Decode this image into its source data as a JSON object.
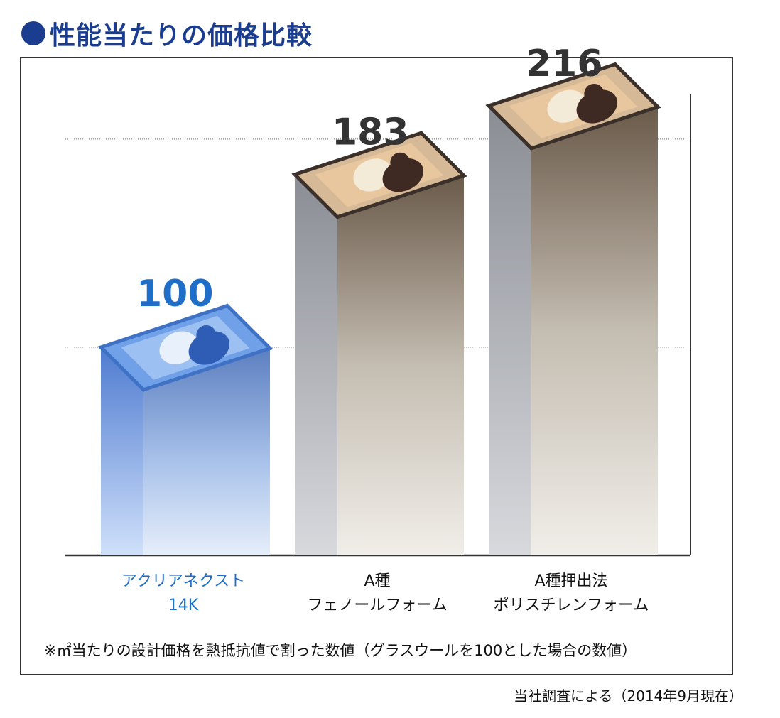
{
  "title": "性能当たりの価格比較",
  "chart_data": {
    "type": "bar",
    "categories": [
      [
        "アクリアネクスト",
        "14K"
      ],
      [
        "A種",
        "フェノールフォーム"
      ],
      [
        "A種押出法",
        "ポリスチレンフォーム"
      ]
    ],
    "values": [
      100,
      183,
      216
    ],
    "value_labels": [
      "100",
      "183",
      "216"
    ],
    "ylim": [
      0,
      260
    ],
    "gridlines": [
      100,
      200
    ],
    "colors": {
      "highlight": "#1f6fc4",
      "highlight_label": "#1f6ec8",
      "other_label": "#333333",
      "category_highlight": "#1f6ec8",
      "category_other": "#111111"
    },
    "highlight_index": 0
  },
  "footnote": "※㎡当たりの設計価格を熱抵抗値で割った数値（グラスウールを100とした場合の数値）",
  "source": "当社調査による（2014年9月現在）"
}
